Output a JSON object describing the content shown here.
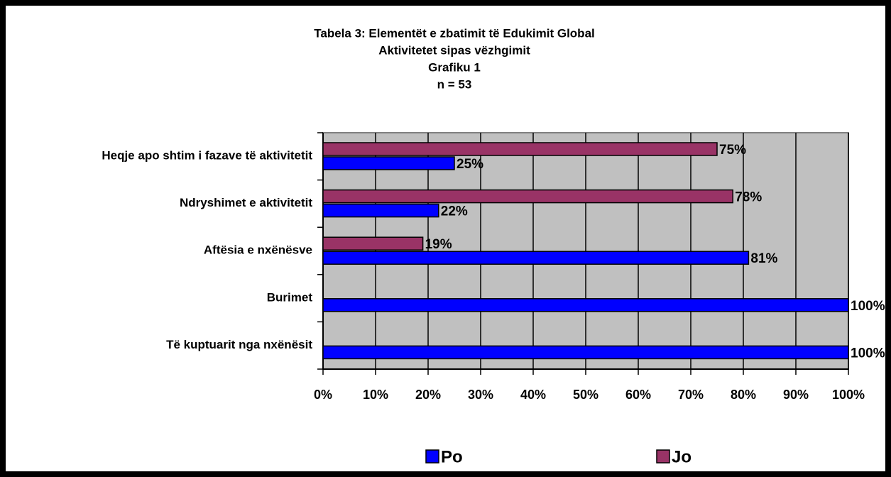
{
  "chart_data": {
    "type": "bar",
    "orientation": "horizontal",
    "title": [
      "Tabela 3: Elementët e zbatimit të Edukimit Global",
      "Aktivitetet sipas vëzhgimit",
      "Grafiku 1",
      "n = 53"
    ],
    "categories": [
      "Heqje apo shtim i fazave të aktivitetit",
      "Ndryshimet e aktivitetit",
      "Aftësia e nxënësve",
      "Burimet",
      "Të kuptuarit nga nxënësit"
    ],
    "series": [
      {
        "name": "Po",
        "color": "#0000ff",
        "values": [
          25,
          22,
          81,
          100,
          100
        ],
        "value_labels": [
          "25%",
          "22%",
          "81%",
          "100%",
          "100%"
        ]
      },
      {
        "name": "Jo",
        "color": "#993366",
        "values": [
          75,
          78,
          19,
          null,
          null
        ],
        "value_labels": [
          "75%",
          "78%",
          "19%",
          null,
          null
        ]
      }
    ],
    "xlim": [
      0,
      100
    ],
    "xticks": [
      {
        "value": 0,
        "label": "0%"
      },
      {
        "value": 10,
        "label": "10%"
      },
      {
        "value": 20,
        "label": "20%"
      },
      {
        "value": 30,
        "label": "30%"
      },
      {
        "value": 40,
        "label": "40%"
      },
      {
        "value": 50,
        "label": "50%"
      },
      {
        "value": 60,
        "label": "60%"
      },
      {
        "value": 70,
        "label": "70%"
      },
      {
        "value": 80,
        "label": "80%"
      },
      {
        "value": 90,
        "label": "90%"
      },
      {
        "value": 100,
        "label": "100%"
      }
    ],
    "grid": true,
    "legend": "bottom"
  }
}
